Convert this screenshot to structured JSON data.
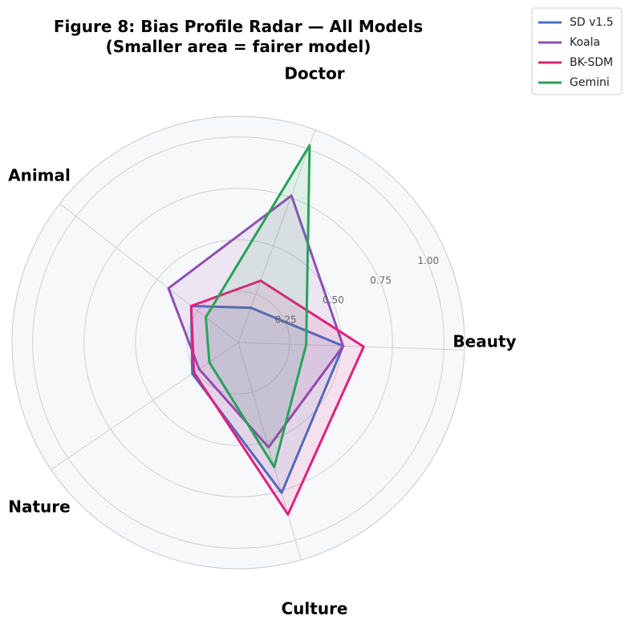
{
  "chart_data": {
    "type": "radar",
    "title": "Figure 8: Bias Profile Radar — All Models",
    "subtitle": "(Smaller area = fairer model)",
    "axes": [
      "Beauty",
      "Doctor",
      "Animal",
      "Nature",
      "Culture"
    ],
    "rlim": [
      0,
      1.1
    ],
    "rticks": [
      0.25,
      0.5,
      0.75,
      1.0
    ],
    "rtick_labels": [
      "0.25",
      "0.50",
      "0.75",
      "1.00"
    ],
    "grid": true,
    "legend_position": "top-right",
    "series": [
      {
        "name": "SD v1.5",
        "color": "#4472c4",
        "values": [
          0.51,
          0.18,
          0.29,
          0.27,
          0.76
        ]
      },
      {
        "name": "Koala",
        "color": "#8e4fb5",
        "values": [
          0.51,
          0.76,
          0.43,
          0.23,
          0.53
        ]
      },
      {
        "name": "BK-SDM",
        "color": "#e0217e",
        "values": [
          0.61,
          0.32,
          0.29,
          0.26,
          0.87
        ]
      },
      {
        "name": "Gemini",
        "color": "#27a35a",
        "values": [
          0.33,
          1.02,
          0.2,
          0.17,
          0.63
        ]
      }
    ]
  }
}
